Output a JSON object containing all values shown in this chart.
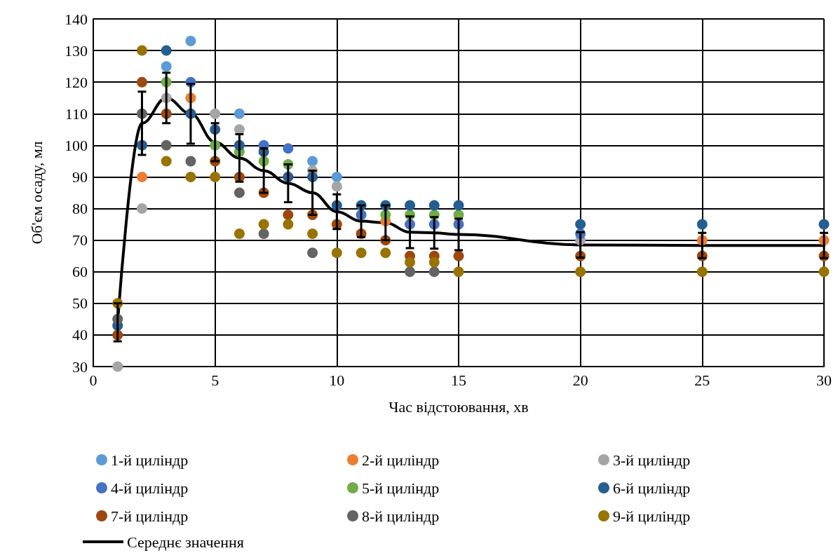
{
  "chart_data": {
    "type": "scatter",
    "xlabel": "Час відстоювання, хв",
    "ylabel": "Об'єм осаду, мл",
    "x": [
      1,
      2,
      3,
      4,
      5,
      6,
      7,
      8,
      9,
      10,
      11,
      12,
      13,
      14,
      15,
      20,
      25,
      30
    ],
    "xlim": [
      0,
      30
    ],
    "xticks": [
      0,
      5,
      10,
      15,
      20,
      25,
      30
    ],
    "ylim": [
      30,
      140
    ],
    "yticks": [
      30,
      40,
      50,
      60,
      70,
      80,
      90,
      100,
      110,
      120,
      130,
      140
    ],
    "grid": true,
    "legend": "bottom",
    "marker": "circle",
    "series": [
      {
        "name": "1-й циліндр",
        "color": "#5b9bd5",
        "values": [
          null,
          null,
          125,
          133,
          null,
          110,
          null,
          null,
          95,
          90,
          null,
          null,
          null,
          null,
          null,
          null,
          null,
          null
        ]
      },
      {
        "name": "2-й циліндр",
        "color": "#ed7d31",
        "values": [
          null,
          90,
          null,
          115,
          null,
          null,
          null,
          null,
          null,
          null,
          null,
          76,
          null,
          null,
          null,
          null,
          70,
          70
        ]
      },
      {
        "name": "3-й циліндр",
        "color": "#a5a5a5",
        "values": [
          30,
          80,
          115,
          null,
          110,
          105,
          null,
          null,
          92,
          87,
          null,
          null,
          null,
          null,
          null,
          70,
          null,
          null
        ]
      },
      {
        "name": "4-й циліндр",
        "color": "#4472c4",
        "values": [
          null,
          null,
          null,
          120,
          null,
          null,
          100,
          99,
          null,
          null,
          78,
          null,
          75,
          75,
          75,
          72,
          null,
          null
        ]
      },
      {
        "name": "5-й циліндр",
        "color": "#70ad47",
        "values": [
          null,
          null,
          120,
          null,
          100,
          98,
          95,
          94,
          null,
          null,
          null,
          78,
          78,
          78,
          78,
          null,
          null,
          null
        ]
      },
      {
        "name": "6-й циліндр",
        "color": "#255e91",
        "values": [
          43,
          100,
          130,
          110,
          105,
          100,
          98,
          90,
          90,
          81,
          81,
          81,
          81,
          81,
          81,
          75,
          75,
          75
        ]
      },
      {
        "name": "7-й циліндр",
        "color": "#9e480e",
        "values": [
          40,
          120,
          110,
          null,
          95,
          90,
          85,
          78,
          78,
          75,
          72,
          70,
          65,
          65,
          65,
          65,
          65,
          65
        ]
      },
      {
        "name": "8-й циліндр",
        "color": "#636363",
        "values": [
          45,
          110,
          100,
          95,
          null,
          85,
          72,
          null,
          66,
          null,
          null,
          null,
          60,
          60,
          null,
          null,
          null,
          null
        ]
      },
      {
        "name": "9-й циліндр",
        "color": "#997300",
        "values": [
          50,
          130,
          95,
          90,
          90,
          72,
          75,
          75,
          72,
          66,
          66,
          66,
          63,
          63,
          60,
          60,
          60,
          60
        ]
      },
      {
        "name": "Середнє значення",
        "type": "line",
        "marker": "none",
        "line_style": "solid",
        "color": "#000000",
        "values": [
          44,
          107,
          115,
          110,
          101,
          96,
          92,
          88,
          85,
          79,
          76,
          75.5,
          72.5,
          72.3,
          71.8,
          68.5,
          68.3,
          68.3
        ],
        "errors": [
          6,
          10,
          8,
          9.5,
          6,
          7.5,
          7,
          6,
          7,
          5.5,
          5,
          5.5,
          5,
          5,
          5,
          4,
          4,
          4
        ]
      }
    ]
  }
}
